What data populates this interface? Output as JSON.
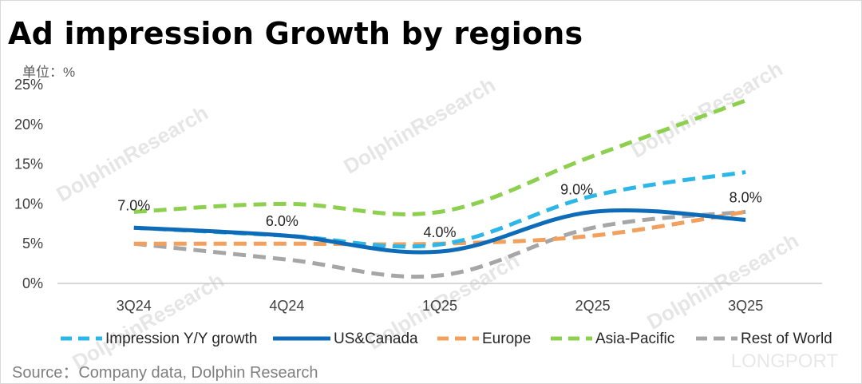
{
  "title": "Ad impression Growth by regions",
  "unit_label": "单位：%",
  "source": "Source：Company data, Dolphin Research",
  "watermark": {
    "text": "DolphinResearch",
    "brand": "LONGPORT"
  },
  "chart_data": {
    "type": "line",
    "title": "Ad impression Growth by regions",
    "categories": [
      "3Q24",
      "4Q24",
      "1Q25",
      "2Q25",
      "3Q25"
    ],
    "ylim": [
      0,
      25
    ],
    "yticks": [
      0,
      5,
      10,
      15,
      20,
      25
    ],
    "ytick_labels": [
      "0%",
      "5%",
      "10%",
      "15%",
      "20%",
      "25%"
    ],
    "grid": false,
    "legend_position": "bottom",
    "series": [
      {
        "name": "Impression Y/Y growth",
        "values": [
          7,
          6,
          4.9,
          11,
          14
        ],
        "color": "#2db7e8",
        "style": "dashed"
      },
      {
        "name": "US&Canada",
        "values": [
          7,
          6,
          4,
          9,
          8
        ],
        "color": "#0e6bb8",
        "style": "solid"
      },
      {
        "name": "Europe",
        "values": [
          5,
          5,
          5,
          6,
          9
        ],
        "color": "#f2a05e",
        "style": "dashed"
      },
      {
        "name": "Asia-Pacific",
        "values": [
          9,
          10,
          9,
          16,
          23
        ],
        "color": "#8dd04f",
        "style": "dashed"
      },
      {
        "name": "Rest of World",
        "values": [
          5,
          3,
          1,
          7,
          9
        ],
        "color": "#a6a6a6",
        "style": "dashed"
      }
    ],
    "data_labels": [
      "7.0%",
      "6.0%",
      "4.0%",
      "9.0%",
      "8.0%"
    ]
  }
}
